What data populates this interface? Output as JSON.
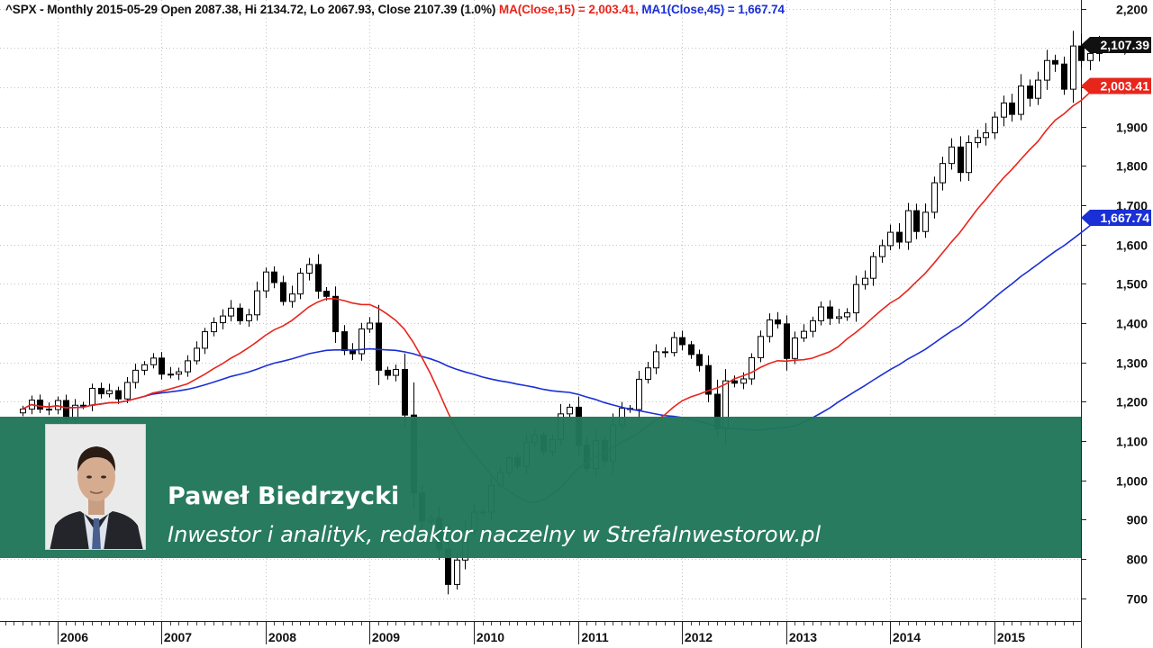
{
  "chart_data": {
    "type": "candlestick",
    "symbol_line": "^SPX - Monthly 2015-05-29 Open 2087.38, Hi 2134.72, Lo 2067.93, Close 2107.39 (1.0%)",
    "ma_label": "MA(Close,15) = 2,003.41,",
    "ma1_label": "MA1(Close,45) = 1,667.74",
    "y_ticks": [
      "700",
      "800",
      "900",
      "1,000",
      "1,100",
      "1,200",
      "1,300",
      "1,400",
      "1,500",
      "1,600",
      "1,700",
      "1,800",
      "1,900",
      "2,000",
      "2,100",
      "2,200"
    ],
    "y_tick_values": [
      700,
      800,
      900,
      1000,
      1100,
      1200,
      1300,
      1400,
      1500,
      1600,
      1700,
      1800,
      1900,
      2000,
      2100,
      2200
    ],
    "ylim": [
      642,
      2222
    ],
    "x_ticks": [
      "2006",
      "2007",
      "2008",
      "2009",
      "2010",
      "2011",
      "2012",
      "2013",
      "2014",
      "2015"
    ],
    "x_tick_values": [
      2006,
      2007,
      2008,
      2009,
      2010,
      2011,
      2012,
      2013,
      2014,
      2015
    ],
    "xlim": [
      2005.45,
      2015.83
    ],
    "close_tag": "2,107.39",
    "ma_tag": "2,003.41",
    "ma1_tag": "1,667.74",
    "colors": {
      "ma": "#e8251b",
      "ma1": "#1a2fd6",
      "close_tag": "#111111",
      "ma_tag": "#e8251b",
      "ma1_tag": "#1a2fd6",
      "banner": "#21775a"
    },
    "monthly_close": [
      1181,
      1204,
      1181,
      1180,
      1203,
      1156,
      1191,
      1191,
      1234,
      1220,
      1228,
      1207,
      1249,
      1280,
      1294,
      1311,
      1270,
      1270,
      1276,
      1304,
      1336,
      1378,
      1401,
      1418,
      1438,
      1406,
      1421,
      1482,
      1530,
      1503,
      1455,
      1474,
      1527,
      1549,
      1481,
      1468,
      1378,
      1330,
      1322,
      1385,
      1400,
      1280,
      1267,
      1282,
      1166,
      968,
      896,
      903,
      825,
      735,
      797,
      872,
      919,
      919,
      987,
      1020,
      1057,
      1036,
      1096,
      1115,
      1073,
      1104,
      1169,
      1186,
      1089,
      1030,
      1101,
      1049,
      1141,
      1183,
      1180,
      1257,
      1286,
      1327,
      1325,
      1363,
      1345,
      1320,
      1292,
      1219,
      1131,
      1253,
      1247,
      1258,
      1312,
      1366,
      1408,
      1398,
      1310,
      1362,
      1379,
      1406,
      1441,
      1412,
      1416,
      1426,
      1498,
      1514,
      1569,
      1597,
      1631,
      1606,
      1686,
      1633,
      1682,
      1757,
      1806,
      1848,
      1783,
      1859,
      1872,
      1884,
      1924,
      1960,
      1931,
      2003,
      1972,
      2018,
      2068,
      2059,
      1995,
      2105,
      2068,
      2086,
      2108
    ]
  },
  "overlay": {
    "name": "Paweł Biedrzycki",
    "role": "Inwestor i analityk, redaktor naczelny w StrefaInwestorow.pl"
  }
}
